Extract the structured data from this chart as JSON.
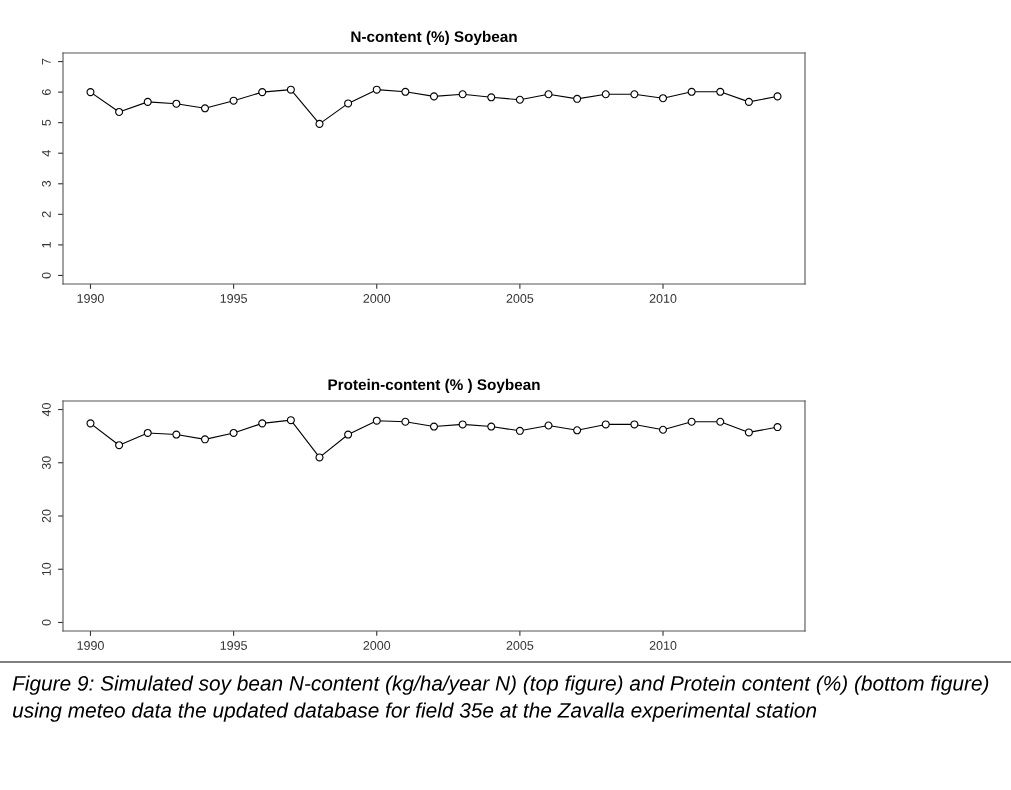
{
  "chart_data": [
    {
      "type": "line",
      "title": "N-content (%) Soybean",
      "marker": "circle",
      "line_style": "solid",
      "x": [
        1990,
        1991,
        1992,
        1993,
        1994,
        1995,
        1996,
        1997,
        1998,
        1999,
        2000,
        2001,
        2002,
        2003,
        2004,
        2005,
        2006,
        2007,
        2008,
        2009,
        2010,
        2011,
        2012,
        2013,
        2014
      ],
      "series": [
        {
          "color": "#000000",
          "values": [
            6.0,
            5.35,
            5.68,
            5.62,
            5.47,
            5.72,
            6.0,
            6.08,
            4.96,
            5.63,
            6.08,
            6.01,
            5.86,
            5.93,
            5.83,
            5.75,
            5.93,
            5.78,
            5.93,
            5.93,
            5.8,
            6.01,
            6.01,
            5.68,
            5.86
          ]
        }
      ],
      "xlim": [
        1989.04,
        2014.96
      ],
      "xticks": [
        1990,
        1995,
        2000,
        2005,
        2010
      ],
      "ylim": [
        -0.28,
        7.28
      ],
      "yticks": [
        0,
        1,
        2,
        3,
        4,
        5,
        6,
        7
      ],
      "grid": false
    },
    {
      "type": "line",
      "title": "Protein-content (% ) Soybean",
      "marker": "circle",
      "line_style": "solid",
      "x": [
        1990,
        1991,
        1992,
        1993,
        1994,
        1995,
        1996,
        1997,
        1998,
        1999,
        2000,
        2001,
        2002,
        2003,
        2004,
        2005,
        2006,
        2007,
        2008,
        2009,
        2010,
        2011,
        2012,
        2013,
        2014
      ],
      "series": [
        {
          "color": "#000000",
          "values": [
            37.4,
            33.3,
            35.6,
            35.3,
            34.4,
            35.6,
            37.4,
            38.0,
            31.0,
            35.3,
            37.9,
            37.7,
            36.8,
            37.2,
            36.8,
            36.0,
            37.0,
            36.1,
            37.2,
            37.2,
            36.2,
            37.7,
            37.7,
            35.7,
            36.7
          ]
        }
      ],
      "xlim": [
        1989.04,
        2014.96
      ],
      "xticks": [
        1990,
        1995,
        2000,
        2005,
        2010
      ],
      "ylim": [
        -1.6,
        41.6
      ],
      "yticks": [
        0,
        10,
        20,
        30,
        40
      ],
      "grid": false,
      "annotations": [
        "Figure 9: Simulated soy bean N-content (kg/ha/year N) (top figure) and Protein content (%) (bottom figure) using meteo data the updated database for field 35e at the Zavalla experimental station"
      ]
    }
  ]
}
